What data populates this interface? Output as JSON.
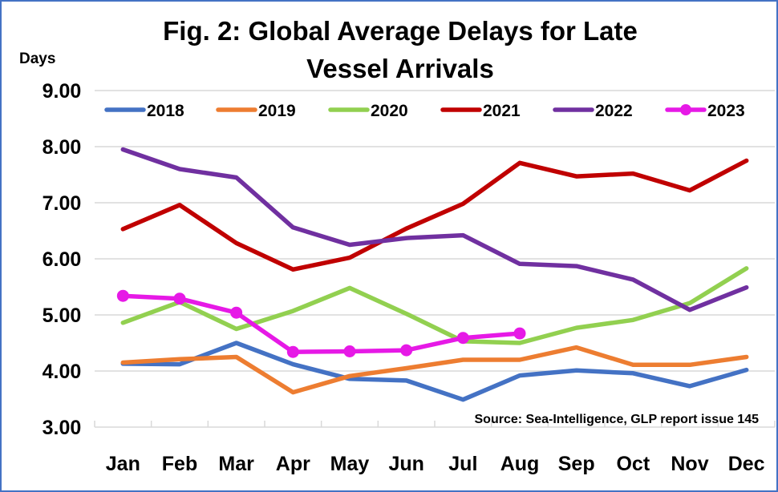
{
  "chart_data": {
    "type": "line",
    "title": "Fig. 2: Global Average Delays for Late Vessel Arrivals",
    "title_lines": [
      "Fig. 2: Global Average Delays for Late",
      "Vessel Arrivals"
    ],
    "xlabel": "",
    "ylabel": "Days",
    "ylim": [
      3,
      9
    ],
    "yticks": [
      3,
      4,
      5,
      6,
      7,
      8,
      9
    ],
    "ytick_labels": [
      "3.00",
      "4.00",
      "5.00",
      "6.00",
      "7.00",
      "8.00",
      "9.00"
    ],
    "categories": [
      "Jan",
      "Feb",
      "Mar",
      "Apr",
      "May",
      "Jun",
      "Jul",
      "Aug",
      "Sep",
      "Oct",
      "Nov",
      "Dec"
    ],
    "grid": true,
    "legend_position": "top",
    "annotation": "Source: Sea-Intelligence, GLP report issue 145",
    "series": [
      {
        "name": "2018",
        "color": "#4472C4",
        "markers": false,
        "values": [
          4.13,
          4.12,
          4.5,
          4.12,
          3.86,
          3.83,
          3.49,
          3.92,
          4.01,
          3.96,
          3.73,
          4.02
        ]
      },
      {
        "name": "2019",
        "color": "#ED7D31",
        "markers": false,
        "values": [
          4.15,
          4.21,
          4.25,
          3.62,
          3.91,
          4.05,
          4.2,
          4.2,
          4.42,
          4.11,
          4.11,
          4.25
        ]
      },
      {
        "name": "2020",
        "color": "#92D050",
        "markers": false,
        "values": [
          4.86,
          5.23,
          4.75,
          5.07,
          5.48,
          5.02,
          4.53,
          4.5,
          4.77,
          4.91,
          5.21,
          5.83
        ]
      },
      {
        "name": "2021",
        "color": "#C00000",
        "markers": false,
        "values": [
          6.53,
          6.96,
          6.28,
          5.81,
          6.02,
          6.54,
          6.98,
          7.71,
          7.47,
          7.52,
          7.22,
          7.75
        ]
      },
      {
        "name": "2022",
        "color": "#7030A0",
        "markers": false,
        "values": [
          7.95,
          7.6,
          7.45,
          6.56,
          6.25,
          6.37,
          6.42,
          5.91,
          5.87,
          5.63,
          5.09,
          5.49
        ]
      },
      {
        "name": "2023",
        "color": "#E619E6",
        "markers": true,
        "values": [
          5.34,
          5.29,
          5.04,
          4.34,
          4.35,
          4.37,
          4.59,
          4.67
        ]
      }
    ]
  }
}
